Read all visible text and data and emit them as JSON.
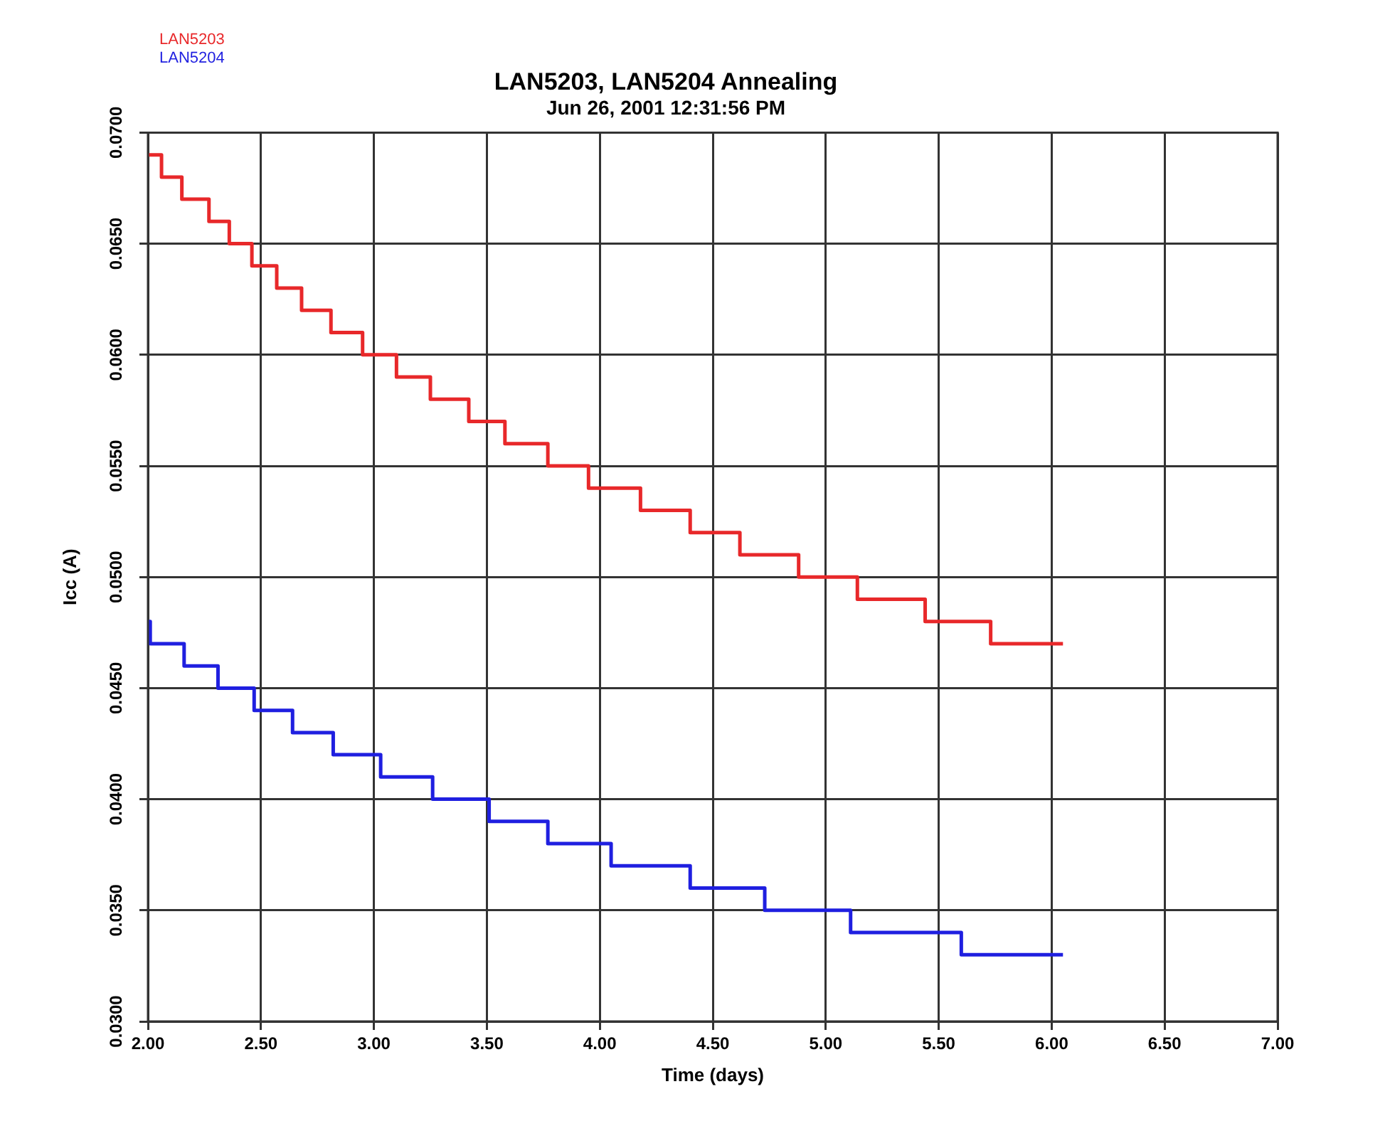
{
  "chart_data": {
    "type": "step",
    "title": "LAN5203, LAN5204 Annealing",
    "subtitle": "Jun 26, 2001 12:31:56 PM",
    "xlabel": "Time (days)",
    "ylabel": "Icc (A)",
    "xlim": [
      2,
      7
    ],
    "xticks": [
      {
        "value": 2,
        "label": "2.00"
      },
      {
        "value": 2.5,
        "label": "2.50"
      },
      {
        "value": 3,
        "label": "3.00"
      },
      {
        "value": 3.5,
        "label": "3.50"
      },
      {
        "value": 4,
        "label": "4.00"
      },
      {
        "value": 4.5,
        "label": "4.50"
      },
      {
        "value": 5,
        "label": "5.00"
      },
      {
        "value": 5.5,
        "label": "5.50"
      },
      {
        "value": 6,
        "label": "6.00"
      },
      {
        "value": 6.5,
        "label": "6.50"
      },
      {
        "value": 7,
        "label": "7.00"
      }
    ],
    "ylim": [
      0.03,
      0.07
    ],
    "yticks": [
      {
        "value": 0.03,
        "label": "0.0300"
      },
      {
        "value": 0.035,
        "label": "0.0350"
      },
      {
        "value": 0.04,
        "label": "0.0400"
      },
      {
        "value": 0.045,
        "label": "0.0450"
      },
      {
        "value": 0.05,
        "label": "0.0500"
      },
      {
        "value": 0.055,
        "label": "0.0550"
      },
      {
        "value": 0.06,
        "label": "0.0600"
      },
      {
        "value": 0.065,
        "label": "0.0650"
      },
      {
        "value": 0.07,
        "label": "0.0700"
      }
    ],
    "grid": true,
    "legend": "top left",
    "marker": "none",
    "series": [
      {
        "name": "LAN5203",
        "color": "#e8282a",
        "x": [
          2.0,
          2.06,
          2.15,
          2.27,
          2.36,
          2.46,
          2.57,
          2.68,
          2.81,
          2.95,
          3.1,
          3.25,
          3.42,
          3.58,
          3.77,
          3.95,
          4.18,
          4.4,
          4.62,
          4.88,
          5.14,
          5.44,
          5.73,
          6.05
        ],
        "values": [
          0.069,
          0.068,
          0.067,
          0.066,
          0.065,
          0.064,
          0.063,
          0.062,
          0.061,
          0.06,
          0.059,
          0.058,
          0.057,
          0.056,
          0.055,
          0.054,
          0.053,
          0.052,
          0.051,
          0.05,
          0.049,
          0.048,
          0.047,
          0.047
        ]
      },
      {
        "name": "LAN5204",
        "color": "#1f1fe0",
        "x": [
          2.0,
          2.01,
          2.16,
          2.31,
          2.47,
          2.64,
          2.82,
          3.03,
          3.26,
          3.51,
          3.77,
          4.05,
          4.4,
          4.73,
          5.11,
          5.6,
          6.05
        ],
        "values": [
          0.048,
          0.047,
          0.046,
          0.045,
          0.044,
          0.043,
          0.042,
          0.041,
          0.04,
          0.039,
          0.038,
          0.037,
          0.036,
          0.035,
          0.034,
          0.033,
          0.033
        ]
      }
    ]
  }
}
